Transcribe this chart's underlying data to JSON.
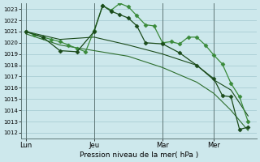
{
  "xlabel": "Pression niveau de la mer( hPa )",
  "background_color": "#cde8ec",
  "grid_color": "#a8cdd3",
  "ylim": [
    1011.5,
    1023.5
  ],
  "yticks": [
    1012,
    1013,
    1014,
    1015,
    1016,
    1017,
    1018,
    1019,
    1020,
    1021,
    1022,
    1023
  ],
  "day_labels": [
    "Lun",
    "Jeu",
    "Mar",
    "Mer"
  ],
  "day_positions": [
    0,
    8,
    16,
    22
  ],
  "xlim": [
    -0.5,
    27
  ],
  "c1": "#2d6e2d",
  "c2": "#1a4a1a",
  "c3": "#3a8a3a",
  "s1_x": [
    0,
    1,
    2,
    3,
    4,
    5,
    6,
    7,
    8,
    9,
    10,
    11,
    12,
    13,
    14,
    15,
    16,
    17,
    18,
    19,
    20,
    21,
    22,
    23,
    24,
    25,
    26
  ],
  "s1_y": [
    1021.0,
    1020.7,
    1020.5,
    1020.3,
    1020.1,
    1019.8,
    1019.5,
    1019.2,
    1021.1,
    1023.3,
    1022.9,
    1023.5,
    1023.2,
    1022.4,
    1021.6,
    1021.5,
    1020.0,
    1020.1,
    1019.9,
    1020.5,
    1020.5,
    1019.8,
    1018.9,
    1018.1,
    1016.4,
    1015.2,
    1013.0
  ],
  "s2_x": [
    0,
    2,
    4,
    6,
    8,
    9,
    10,
    11,
    12,
    13,
    14,
    16,
    18,
    20,
    22,
    23,
    24,
    25,
    26
  ],
  "s2_y": [
    1021.0,
    1020.5,
    1019.3,
    1019.2,
    1021.0,
    1023.3,
    1022.8,
    1022.5,
    1022.2,
    1021.5,
    1020.0,
    1019.9,
    1019.1,
    1018.0,
    1016.8,
    1015.3,
    1015.2,
    1012.3,
    1012.5
  ],
  "s3_x": [
    0,
    4,
    8,
    12,
    16,
    20,
    22,
    24,
    26
  ],
  "s3_y": [
    1021.0,
    1020.3,
    1020.5,
    1019.8,
    1019.0,
    1018.0,
    1016.7,
    1015.8,
    1013.5
  ],
  "s4_x": [
    0,
    4,
    8,
    12,
    16,
    20,
    22,
    24,
    26
  ],
  "s4_y": [
    1020.8,
    1019.8,
    1019.3,
    1018.8,
    1017.8,
    1016.5,
    1015.5,
    1014.0,
    1012.2
  ]
}
